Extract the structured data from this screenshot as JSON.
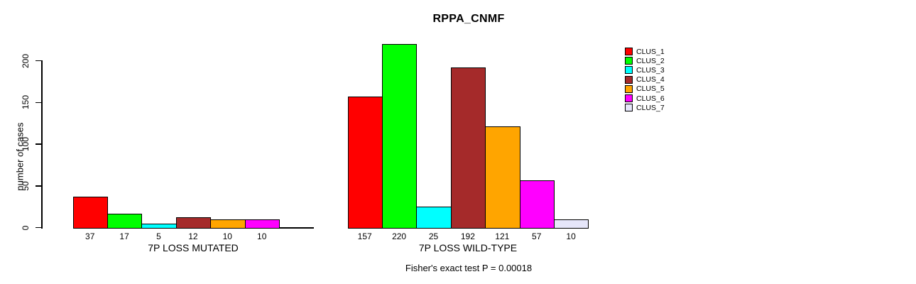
{
  "chart_data": {
    "type": "bar",
    "title": "RPPA_CNMF",
    "ylabel": "number of cases",
    "ylim": [
      0,
      220
    ],
    "yticks": [
      0,
      50,
      100,
      150,
      200
    ],
    "grid": false,
    "legend_position": "right",
    "legend": {
      "entries": [
        {
          "label": "CLUS_1",
          "color": "#FF0000"
        },
        {
          "label": "CLUS_2",
          "color": "#00FF00"
        },
        {
          "label": "CLUS_3",
          "color": "#00FFFF"
        },
        {
          "label": "CLUS_4",
          "color": "#A52A2A"
        },
        {
          "label": "CLUS_5",
          "color": "#FFA500"
        },
        {
          "label": "CLUS_6",
          "color": "#FF00FF"
        },
        {
          "label": "CLUS_7",
          "color": "#E6E6FA"
        }
      ]
    },
    "panels": [
      {
        "xlabel": "7P LOSS MUTATED",
        "values": [
          37,
          17,
          5,
          12,
          10,
          10
        ],
        "bar_labels": [
          "37",
          "17",
          "5",
          "12",
          "10",
          "10"
        ]
      },
      {
        "xlabel": "7P LOSS WILD-TYPE",
        "values": [
          157,
          220,
          25,
          192,
          121,
          57,
          10
        ],
        "bar_labels": [
          "157",
          "220",
          "25",
          "192",
          "121",
          "57",
          "10"
        ]
      }
    ],
    "annotation": "Fisher's exact test P = 0.00018"
  }
}
